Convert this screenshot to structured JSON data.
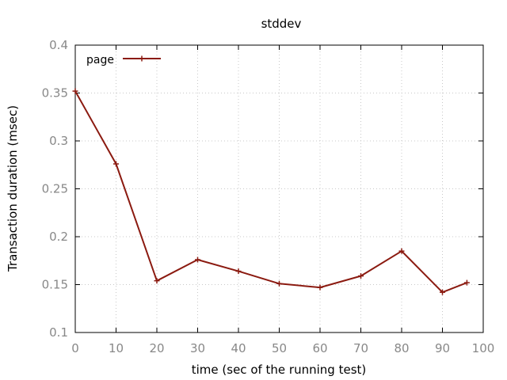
{
  "chart_data": {
    "type": "line",
    "title": "stddev",
    "xlabel": "time (sec of the running test)",
    "ylabel": "Transaction duration (msec)",
    "xlim": [
      0,
      100
    ],
    "ylim": [
      0.1,
      0.4
    ],
    "x_ticks": [
      0,
      10,
      20,
      30,
      40,
      50,
      60,
      70,
      80,
      90,
      100
    ],
    "y_ticks": [
      0.1,
      0.15,
      0.2,
      0.25,
      0.3,
      0.35,
      0.4
    ],
    "grid": true,
    "legend_position": "top-left",
    "series": [
      {
        "name": "page",
        "color": "#8b1a10",
        "marker": "plus",
        "x": [
          0,
          10,
          20,
          30,
          40,
          50,
          60,
          70,
          80,
          90,
          96
        ],
        "y": [
          0.352,
          0.276,
          0.154,
          0.176,
          0.164,
          0.151,
          0.147,
          0.159,
          0.185,
          0.142,
          0.152
        ]
      }
    ]
  }
}
